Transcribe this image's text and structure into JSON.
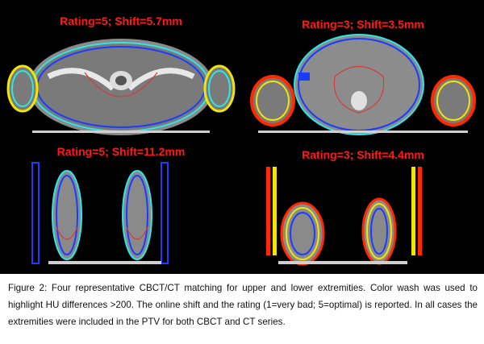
{
  "figure": {
    "panels": [
      {
        "label": "Rating=5; Shift=5.7mm"
      },
      {
        "label": "Rating=3; Shift=3.5mm"
      },
      {
        "label": "Rating=5; Shift=11.2mm"
      },
      {
        "label": "Rating=3; Shift=4.4mm"
      }
    ],
    "colors": {
      "background": "#000000",
      "label": "#ff1a1a",
      "wash_blue": "#1a3cff",
      "wash_cyan": "#2ee6e6",
      "wash_yellow": "#f2e600",
      "wash_red": "#ff2a00",
      "contour": "#d23c3c"
    }
  },
  "caption": {
    "text": "Figure 2: Four representative CBCT/CT matching for upper and lower extremities. Color wash was used to highlight HU differences >200. The online shift and the rating (1=very bad; 5=optimal) is reported. In all cases the extremities were included in the PTV for both CBCT and CT series."
  }
}
